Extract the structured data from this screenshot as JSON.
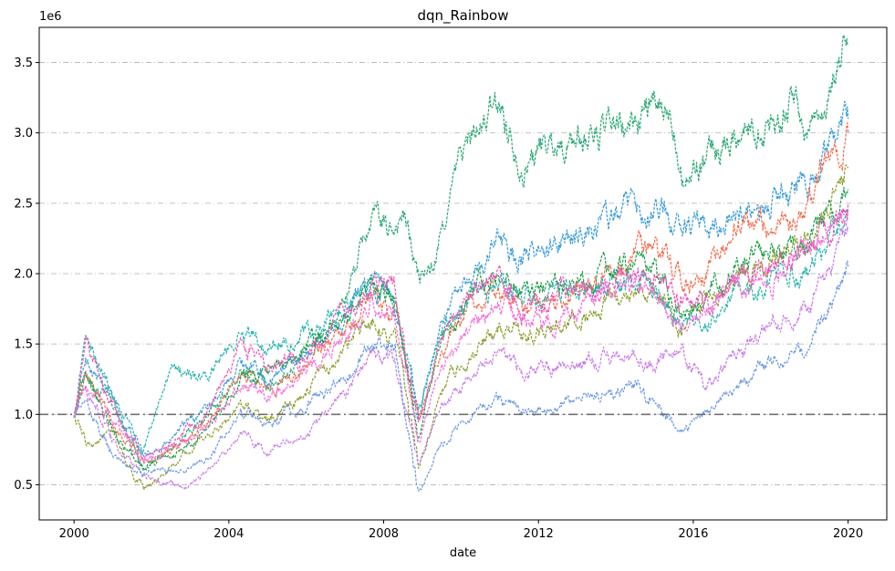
{
  "chart_data": {
    "type": "line",
    "title": "dqn_Rainbow",
    "xlabel": "date",
    "ylabel": "",
    "y_offset_label": "1e6",
    "x_ticks": [
      "2000",
      "2004",
      "2008",
      "2012",
      "2016",
      "2020"
    ],
    "y_ticks": [
      "0.5",
      "1.0",
      "1.5",
      "2.0",
      "2.5",
      "3.0",
      "3.5"
    ],
    "x_tick_values": [
      2000,
      2004,
      2008,
      2012,
      2016,
      2020
    ],
    "y_tick_values": [
      0.5,
      1.0,
      1.5,
      2.0,
      2.5,
      3.0,
      3.5
    ],
    "xlim": [
      1999.1,
      2021.0
    ],
    "ylim": [
      0.25,
      3.75
    ],
    "y_scale": 1000000,
    "grid": "horizontal dash-dot",
    "reference_line": 1.0,
    "legend": "none",
    "series": [
      {
        "color": "#2ea876",
        "values": [
          [
            2000.0,
            1.0
          ],
          [
            2000.3,
            1.28
          ],
          [
            2001.0,
            1.05
          ],
          [
            2001.8,
            0.62
          ],
          [
            2002.8,
            0.82
          ],
          [
            2003.5,
            1.0
          ],
          [
            2004.3,
            1.28
          ],
          [
            2005.0,
            1.2
          ],
          [
            2006.0,
            1.42
          ],
          [
            2007.0,
            1.82
          ],
          [
            2007.7,
            2.4
          ],
          [
            2008.1,
            2.28
          ],
          [
            2008.5,
            2.45
          ],
          [
            2008.9,
            1.95
          ],
          [
            2009.3,
            2.05
          ],
          [
            2010.0,
            2.85
          ],
          [
            2011.0,
            3.2
          ],
          [
            2011.6,
            2.82
          ],
          [
            2012.2,
            2.9
          ],
          [
            2013.2,
            2.98
          ],
          [
            2014.3,
            3.02
          ],
          [
            2014.8,
            3.18
          ],
          [
            2015.5,
            3.08
          ],
          [
            2015.8,
            2.72
          ],
          [
            2016.3,
            2.8
          ],
          [
            2017.0,
            2.98
          ],
          [
            2018.0,
            3.1
          ],
          [
            2018.6,
            3.25
          ],
          [
            2018.9,
            3.0
          ],
          [
            2019.5,
            3.3
          ],
          [
            2020.0,
            3.62
          ]
        ]
      },
      {
        "color": "#3a9bd8",
        "values": [
          [
            2000.0,
            1.0
          ],
          [
            2000.3,
            1.4
          ],
          [
            2001.0,
            1.1
          ],
          [
            2001.8,
            0.7
          ],
          [
            2002.8,
            0.9
          ],
          [
            2003.5,
            1.05
          ],
          [
            2004.3,
            1.4
          ],
          [
            2005.0,
            1.25
          ],
          [
            2006.0,
            1.45
          ],
          [
            2007.0,
            1.7
          ],
          [
            2007.7,
            1.95
          ],
          [
            2008.3,
            1.8
          ],
          [
            2008.9,
            1.0
          ],
          [
            2009.5,
            1.65
          ],
          [
            2010.3,
            2.0
          ],
          [
            2011.0,
            2.25
          ],
          [
            2011.6,
            2.1
          ],
          [
            2012.5,
            2.2
          ],
          [
            2013.5,
            2.35
          ],
          [
            2014.5,
            2.45
          ],
          [
            2015.0,
            2.5
          ],
          [
            2015.7,
            2.35
          ],
          [
            2016.3,
            2.3
          ],
          [
            2017.0,
            2.4
          ],
          [
            2018.0,
            2.5
          ],
          [
            2019.0,
            2.65
          ],
          [
            2020.0,
            3.1
          ]
        ]
      },
      {
        "color": "#f06c4c",
        "values": [
          [
            2000.0,
            1.0
          ],
          [
            2000.3,
            1.3
          ],
          [
            2001.0,
            0.95
          ],
          [
            2001.8,
            0.65
          ],
          [
            2002.8,
            0.78
          ],
          [
            2003.5,
            0.95
          ],
          [
            2004.3,
            1.3
          ],
          [
            2005.0,
            1.15
          ],
          [
            2006.0,
            1.35
          ],
          [
            2007.0,
            1.6
          ],
          [
            2007.7,
            1.85
          ],
          [
            2008.3,
            1.7
          ],
          [
            2008.9,
            0.95
          ],
          [
            2009.5,
            1.45
          ],
          [
            2010.3,
            1.75
          ],
          [
            2011.0,
            1.9
          ],
          [
            2011.6,
            1.75
          ],
          [
            2012.5,
            1.85
          ],
          [
            2013.5,
            1.95
          ],
          [
            2014.5,
            2.15
          ],
          [
            2015.0,
            2.15
          ],
          [
            2015.7,
            1.95
          ],
          [
            2016.3,
            2.0
          ],
          [
            2017.0,
            2.3
          ],
          [
            2018.0,
            2.35
          ],
          [
            2019.0,
            2.55
          ],
          [
            2020.0,
            3.0
          ]
        ]
      },
      {
        "color": "#8a9c2a",
        "values": [
          [
            2000.0,
            1.0
          ],
          [
            2000.3,
            0.78
          ],
          [
            2001.0,
            0.85
          ],
          [
            2001.8,
            0.45
          ],
          [
            2002.8,
            0.68
          ],
          [
            2003.5,
            0.85
          ],
          [
            2004.3,
            1.05
          ],
          [
            2005.0,
            0.95
          ],
          [
            2006.0,
            1.15
          ],
          [
            2007.0,
            1.45
          ],
          [
            2007.7,
            1.7
          ],
          [
            2008.3,
            1.55
          ],
          [
            2008.9,
            0.6
          ],
          [
            2009.5,
            1.2
          ],
          [
            2010.3,
            1.45
          ],
          [
            2011.0,
            1.6
          ],
          [
            2011.6,
            1.55
          ],
          [
            2012.5,
            1.65
          ],
          [
            2013.5,
            1.75
          ],
          [
            2014.5,
            1.9
          ],
          [
            2015.0,
            1.9
          ],
          [
            2015.7,
            1.65
          ],
          [
            2016.3,
            1.8
          ],
          [
            2017.0,
            2.0
          ],
          [
            2018.0,
            2.1
          ],
          [
            2019.0,
            2.25
          ],
          [
            2020.0,
            2.75
          ]
        ]
      },
      {
        "color": "#27b3b0",
        "values": [
          [
            2000.0,
            1.0
          ],
          [
            2000.3,
            1.5
          ],
          [
            2001.0,
            1.15
          ],
          [
            2001.8,
            0.75
          ],
          [
            2002.5,
            1.3
          ],
          [
            2003.5,
            1.25
          ],
          [
            2004.3,
            1.6
          ],
          [
            2005.0,
            1.5
          ],
          [
            2006.0,
            1.55
          ],
          [
            2007.0,
            1.75
          ],
          [
            2007.7,
            1.9
          ],
          [
            2008.3,
            1.75
          ],
          [
            2008.9,
            1.0
          ],
          [
            2009.5,
            1.6
          ],
          [
            2010.3,
            1.85
          ],
          [
            2011.0,
            1.95
          ],
          [
            2011.6,
            1.8
          ],
          [
            2012.5,
            1.85
          ],
          [
            2013.5,
            1.9
          ],
          [
            2014.5,
            1.95
          ],
          [
            2015.0,
            1.9
          ],
          [
            2015.7,
            1.6
          ],
          [
            2016.3,
            1.7
          ],
          [
            2017.0,
            1.85
          ],
          [
            2018.0,
            1.95
          ],
          [
            2019.0,
            2.05
          ],
          [
            2020.0,
            2.45
          ]
        ]
      },
      {
        "color": "#c77be8",
        "values": [
          [
            2000.0,
            1.0
          ],
          [
            2000.3,
            1.2
          ],
          [
            2001.0,
            0.8
          ],
          [
            2001.8,
            0.55
          ],
          [
            2002.8,
            0.48
          ],
          [
            2003.5,
            0.6
          ],
          [
            2004.3,
            0.85
          ],
          [
            2005.0,
            0.75
          ],
          [
            2006.0,
            0.85
          ],
          [
            2007.0,
            1.15
          ],
          [
            2007.7,
            1.45
          ],
          [
            2008.3,
            1.35
          ],
          [
            2008.9,
            0.65
          ],
          [
            2009.5,
            1.05
          ],
          [
            2010.3,
            1.3
          ],
          [
            2011.0,
            1.45
          ],
          [
            2011.6,
            1.3
          ],
          [
            2012.5,
            1.35
          ],
          [
            2013.5,
            1.4
          ],
          [
            2014.5,
            1.45
          ],
          [
            2015.0,
            1.35
          ],
          [
            2015.7,
            1.5
          ],
          [
            2016.3,
            1.2
          ],
          [
            2017.0,
            1.4
          ],
          [
            2018.0,
            1.6
          ],
          [
            2019.0,
            1.75
          ],
          [
            2020.0,
            2.3
          ]
        ]
      },
      {
        "color": "#6b97e6",
        "values": [
          [
            2000.0,
            1.0
          ],
          [
            2000.3,
            1.1
          ],
          [
            2001.0,
            0.7
          ],
          [
            2001.8,
            0.6
          ],
          [
            2002.8,
            0.6
          ],
          [
            2003.5,
            0.7
          ],
          [
            2004.3,
            1.0
          ],
          [
            2005.0,
            0.95
          ],
          [
            2006.0,
            1.05
          ],
          [
            2007.0,
            1.25
          ],
          [
            2007.7,
            1.5
          ],
          [
            2008.3,
            1.45
          ],
          [
            2008.9,
            0.45
          ],
          [
            2009.5,
            0.8
          ],
          [
            2010.3,
            1.0
          ],
          [
            2011.0,
            1.1
          ],
          [
            2011.6,
            1.0
          ],
          [
            2012.5,
            1.05
          ],
          [
            2013.5,
            1.15
          ],
          [
            2014.5,
            1.2
          ],
          [
            2015.0,
            1.1
          ],
          [
            2015.7,
            0.85
          ],
          [
            2016.3,
            1.0
          ],
          [
            2017.0,
            1.2
          ],
          [
            2018.0,
            1.35
          ],
          [
            2019.0,
            1.5
          ],
          [
            2020.0,
            2.05
          ]
        ]
      },
      {
        "color": "#1e9e4a",
        "values": [
          [
            2000.0,
            1.0
          ],
          [
            2000.3,
            1.35
          ],
          [
            2001.0,
            0.9
          ],
          [
            2001.8,
            0.6
          ],
          [
            2002.8,
            0.75
          ],
          [
            2003.5,
            0.9
          ],
          [
            2004.3,
            1.25
          ],
          [
            2005.0,
            1.3
          ],
          [
            2006.0,
            1.45
          ],
          [
            2007.0,
            1.65
          ],
          [
            2007.7,
            1.9
          ],
          [
            2008.3,
            1.75
          ],
          [
            2008.9,
            0.85
          ],
          [
            2009.5,
            1.5
          ],
          [
            2010.3,
            1.9
          ],
          [
            2011.0,
            2.05
          ],
          [
            2011.6,
            1.85
          ],
          [
            2012.5,
            1.9
          ],
          [
            2013.5,
            1.95
          ],
          [
            2014.5,
            2.05
          ],
          [
            2015.0,
            2.0
          ],
          [
            2015.7,
            1.7
          ],
          [
            2016.3,
            1.85
          ],
          [
            2017.0,
            2.05
          ],
          [
            2018.0,
            2.15
          ],
          [
            2019.0,
            2.25
          ],
          [
            2020.0,
            2.6
          ]
        ]
      },
      {
        "color": "#ec55b8",
        "values": [
          [
            2000.0,
            1.0
          ],
          [
            2000.3,
            1.45
          ],
          [
            2001.0,
            1.05
          ],
          [
            2001.8,
            0.7
          ],
          [
            2002.8,
            0.85
          ],
          [
            2003.5,
            1.0
          ],
          [
            2004.3,
            1.5
          ],
          [
            2005.0,
            1.35
          ],
          [
            2006.0,
            1.4
          ],
          [
            2007.0,
            1.7
          ],
          [
            2007.7,
            1.95
          ],
          [
            2008.3,
            1.85
          ],
          [
            2008.9,
            0.9
          ],
          [
            2009.5,
            1.55
          ],
          [
            2010.3,
            1.85
          ],
          [
            2011.0,
            1.95
          ],
          [
            2011.6,
            1.75
          ],
          [
            2012.5,
            1.8
          ],
          [
            2013.5,
            1.9
          ],
          [
            2014.5,
            2.0
          ],
          [
            2015.0,
            2.0
          ],
          [
            2015.7,
            1.8
          ],
          [
            2016.3,
            1.75
          ],
          [
            2017.0,
            1.95
          ],
          [
            2018.0,
            2.05
          ],
          [
            2019.0,
            2.2
          ],
          [
            2020.0,
            2.5
          ]
        ]
      },
      {
        "color": "#f46cd8",
        "values": [
          [
            2000.0,
            1.0
          ],
          [
            2000.3,
            1.25
          ],
          [
            2001.0,
            0.95
          ],
          [
            2001.8,
            0.65
          ],
          [
            2002.8,
            0.8
          ],
          [
            2003.5,
            0.95
          ],
          [
            2004.3,
            1.2
          ],
          [
            2005.0,
            1.15
          ],
          [
            2006.0,
            1.3
          ],
          [
            2007.0,
            1.55
          ],
          [
            2007.7,
            1.8
          ],
          [
            2008.3,
            1.65
          ],
          [
            2008.9,
            0.8
          ],
          [
            2009.5,
            1.35
          ],
          [
            2010.3,
            1.65
          ],
          [
            2011.0,
            1.8
          ],
          [
            2011.6,
            1.65
          ],
          [
            2012.5,
            1.7
          ],
          [
            2013.5,
            1.8
          ],
          [
            2014.5,
            1.9
          ],
          [
            2015.0,
            1.85
          ],
          [
            2015.7,
            1.65
          ],
          [
            2016.3,
            1.7
          ],
          [
            2017.0,
            1.9
          ],
          [
            2018.0,
            2.0
          ],
          [
            2019.0,
            2.15
          ],
          [
            2020.0,
            2.45
          ]
        ]
      }
    ]
  }
}
